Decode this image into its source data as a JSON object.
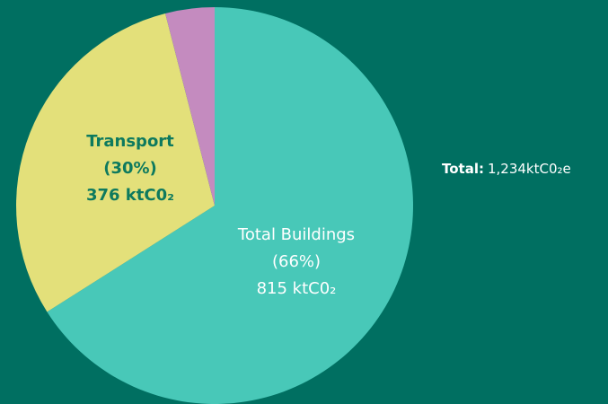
{
  "chart_data": {
    "type": "pie",
    "categories": [
      "Total Buildings",
      "Transport",
      null
    ],
    "values": [
      66,
      30,
      4
    ],
    "value_labels": [
      "(66%)",
      "(30%)",
      null
    ],
    "amounts": [
      815,
      376,
      null
    ],
    "amount_labels": [
      "815 ktC0₂",
      "376 ktC0₂",
      null
    ],
    "colors": [
      "#48c8b8",
      "#e3e07a",
      "#c48bbf"
    ],
    "total_label": "Total:",
    "total_value": "1,234ktC0₂e"
  }
}
